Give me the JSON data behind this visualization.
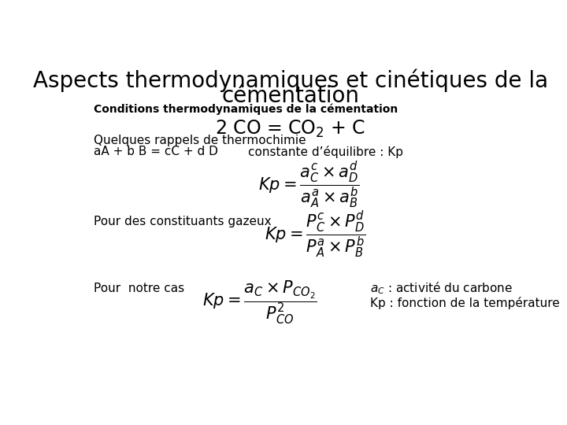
{
  "title_line1": "Aspects thermodynamiques et cinétiques de la",
  "title_line2": "cémentation",
  "subtitle": "Conditions thermodynamiques de la cémentation",
  "rappels_label": "Quelques rappels de thermochimie",
  "reaction_general": "aA + b B = cC + d D",
  "constante_label": "constante d’équilibre : Kp",
  "gazeux_label": "Pour des constituants gazeux",
  "notre_cas_label": "Pour  notre cas",
  "ac_label": "a : activité du carbone",
  "kp_label": "Kp : fonction de la température",
  "bg_color": "#ffffff",
  "text_color": "#000000",
  "title_fontsize": 20,
  "subtitle_fontsize": 10,
  "body_fontsize": 11,
  "formula_fontsize": 15
}
